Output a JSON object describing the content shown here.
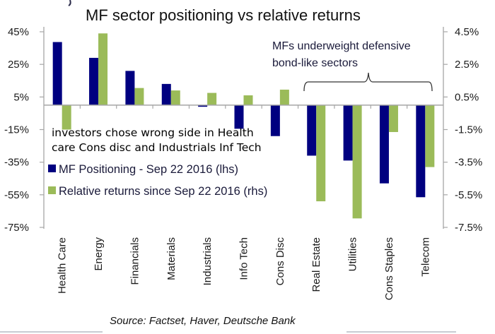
{
  "chart_data": {
    "type": "bar",
    "title": "MF sector positioning vs relative returns",
    "categories": [
      "Health Care",
      "Energy",
      "Financials",
      "Materials",
      "Industrials",
      "Info Tech",
      "Cons Disc",
      "Real Estate",
      "Utilities",
      "Cons Staples",
      "Telecom"
    ],
    "series": [
      {
        "name": "MF Positioning - Sep 22 2016 (lhs)",
        "axis": "left",
        "unit": "%",
        "color": "#000080",
        "values": [
          38.7,
          29,
          21,
          13,
          -1,
          -14.5,
          -19,
          -31,
          -34,
          -48,
          -56.5
        ]
      },
      {
        "name": "Relative returns since Sep 22 2016 (rhs)",
        "axis": "right",
        "unit": "%",
        "color": "#9bbb59",
        "values": [
          -1.5,
          4.4,
          1.05,
          0.9,
          0.75,
          0.6,
          0.95,
          -5.9,
          -6.95,
          -1.65,
          -3.8
        ]
      }
    ],
    "left_axis": {
      "ylim": [
        -75,
        45
      ],
      "ticks": [
        45,
        25,
        5,
        -15,
        -35,
        -55,
        -75
      ],
      "tick_labels": [
        "45%",
        "25%",
        "5%",
        "-15%",
        "-35%",
        "-55%",
        "-75%"
      ]
    },
    "right_axis": {
      "ylim": [
        -7.5,
        4.5
      ],
      "ticks": [
        4.5,
        2.5,
        0.5,
        -1.5,
        -3.5,
        -5.5,
        -7.5
      ],
      "tick_labels": [
        "4.5%",
        "2.5%",
        "0.5%",
        "-1.5%",
        "-3.5%",
        "-5.5%",
        "-7.5%"
      ]
    },
    "xlabel": "",
    "ylabel": "",
    "grid": false,
    "legend": {
      "placement": "center-left",
      "entries": [
        "MF Positioning - Sep 22 2016 (lhs)",
        "Relative returns since Sep 22 2016 (rhs)"
      ]
    },
    "annotations": [
      {
        "text_lines": [
          "MFs underweight defensive",
          "bond-like sectors"
        ],
        "spans_categories": [
          "Real Estate",
          "Telecom"
        ]
      },
      {
        "text_lines": [
          "investors chose wrong side in Health",
          "care Cons disc and Industrials Inf Tech"
        ]
      }
    ],
    "source": "Source: Factset, Haver,  Deutsche Bank"
  }
}
